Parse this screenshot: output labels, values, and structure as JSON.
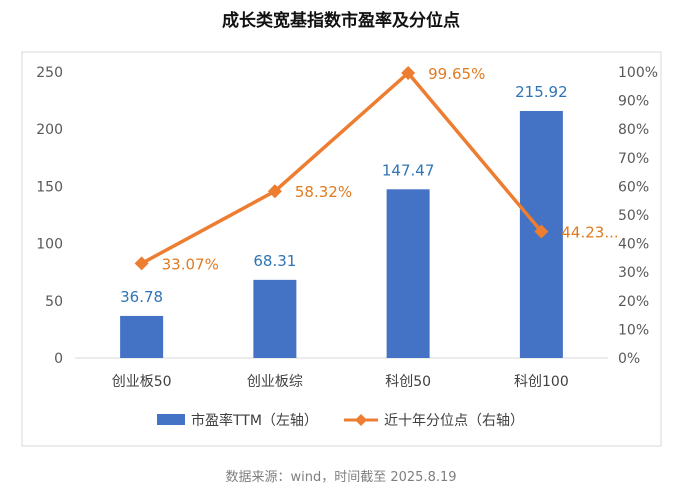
{
  "chart_data": {
    "type": "bar+line",
    "title": "成长类宽基指数市盈率及分位点",
    "categories": [
      "创业板50",
      "创业板综",
      "科创50",
      "科创100"
    ],
    "series": [
      {
        "name": "市盈率TTM（左轴）",
        "type": "bar",
        "axis": "left",
        "values": [
          36.78,
          68.31,
          147.47,
          215.92
        ],
        "labels": [
          "36.78",
          "68.31",
          "147.47",
          "215.92"
        ],
        "color": "#4472c4"
      },
      {
        "name": "近十年分位点（右轴）",
        "type": "line",
        "axis": "right",
        "values": [
          33.07,
          58.32,
          99.65,
          44.23
        ],
        "labels": [
          "33.07%",
          "58.32%",
          "99.65%",
          "44.23..."
        ],
        "color": "#ed7d31"
      }
    ],
    "left_axis": {
      "ylim": [
        0,
        250
      ],
      "ticks": [
        "0",
        "50",
        "100",
        "150",
        "200",
        "250"
      ]
    },
    "right_axis": {
      "ylim": [
        0,
        100
      ],
      "ticks": [
        "0%",
        "10%",
        "20%",
        "30%",
        "40%",
        "50%",
        "60%",
        "70%",
        "80%",
        "90%",
        "100%"
      ]
    },
    "legend_position": "bottom",
    "grid": false,
    "source_note": "数据来源：wind，时间截至 2025.8.19"
  }
}
